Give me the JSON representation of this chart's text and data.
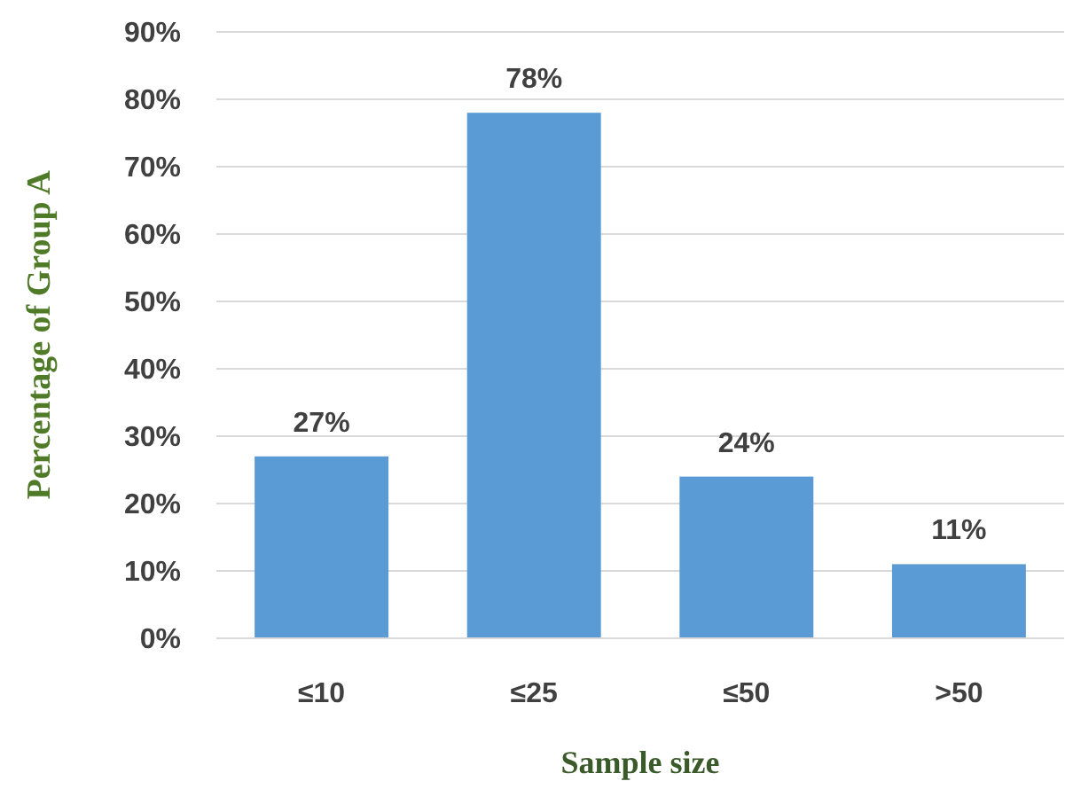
{
  "chart_data": {
    "type": "bar",
    "xlabel": "Sample size",
    "ylabel": "Percentage of Group A",
    "categories": [
      "≤10",
      "≤25",
      "≤50",
      ">50"
    ],
    "values": [
      27,
      78,
      24,
      11
    ],
    "color": "#5b9bd5",
    "value_labels": [
      "27%",
      "78%",
      "24%",
      "11%"
    ],
    "ylim": [
      0,
      90
    ],
    "yticks": [
      {
        "value": 0,
        "label": "0%"
      },
      {
        "value": 10,
        "label": "10%"
      },
      {
        "value": 20,
        "label": "20%"
      },
      {
        "value": 30,
        "label": "30%"
      },
      {
        "value": 40,
        "label": "40%"
      },
      {
        "value": 50,
        "label": "50%"
      },
      {
        "value": 60,
        "label": "60%"
      },
      {
        "value": 70,
        "label": "70%"
      },
      {
        "value": 80,
        "label": "80%"
      },
      {
        "value": 90,
        "label": "90%"
      }
    ],
    "grid": "y"
  }
}
